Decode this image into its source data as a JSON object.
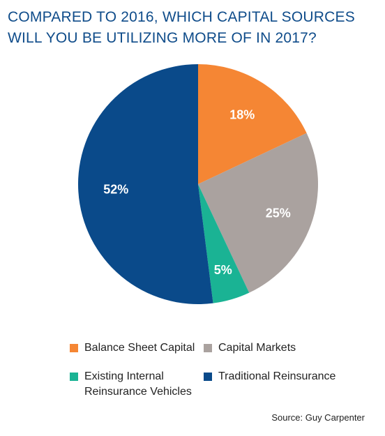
{
  "header": {
    "title": "COMPARED TO 2016, WHICH CAPITAL SOURCES WILL YOU BE UTILIZING MORE OF IN 2017?"
  },
  "chart_data": {
    "type": "pie",
    "title": "COMPARED TO 2016, WHICH CAPITAL SOURCES WILL YOU BE UTILIZING MORE OF IN 2017?",
    "categories": [
      "Balance Sheet Capital",
      "Capital Markets",
      "Existing Internal\nReinsurance Vehicles",
      "Traditional Reinsurance"
    ],
    "values": [
      18,
      25,
      5,
      52
    ],
    "value_labels": [
      "18%",
      "25%",
      "5%",
      "52%"
    ],
    "colors": [
      "#f58634",
      "#aaa29f",
      "#1ab394",
      "#0a4a8a"
    ],
    "legend_position": "bottom"
  },
  "footer": {
    "source": "Source: Guy Carpenter"
  }
}
